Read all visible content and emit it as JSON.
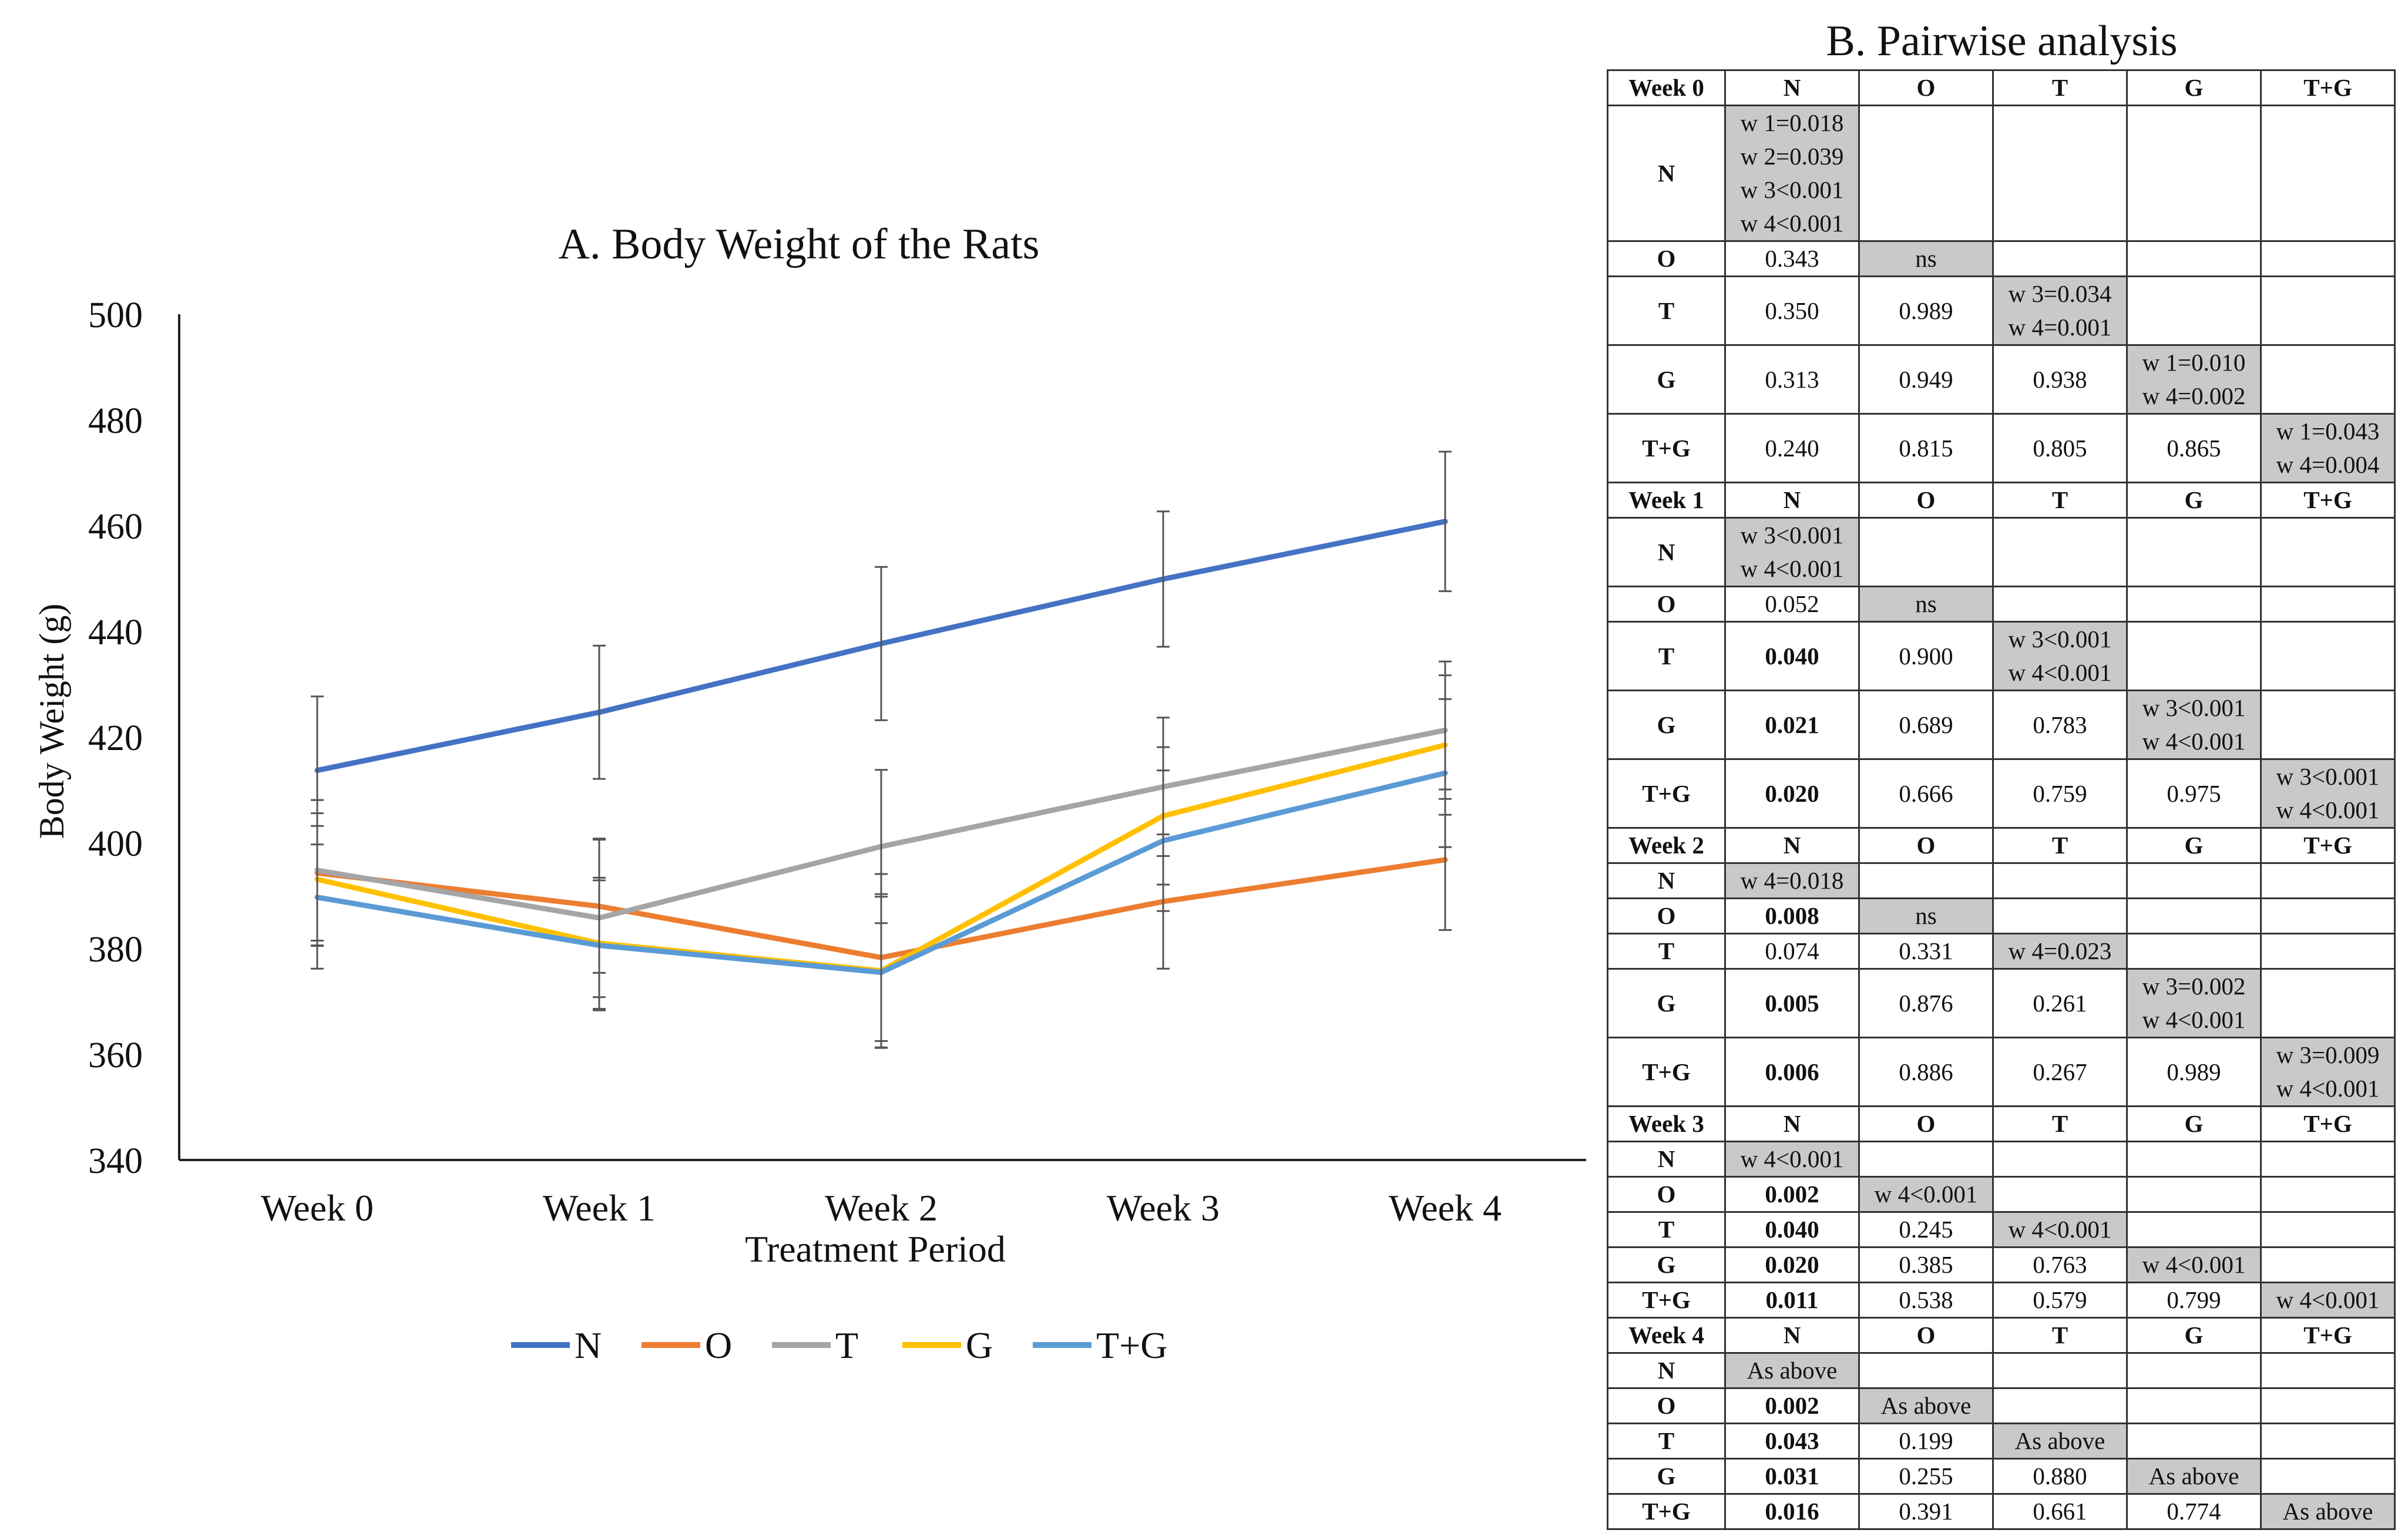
{
  "chart_data": {
    "type": "line",
    "title": "A. Body Weight of the Rats",
    "xlabel": "Treatment Period",
    "ylabel": "Body Weight (g)",
    "categories": [
      "Week 0",
      "Week 1",
      "Week 2",
      "Week 3",
      "Week 4"
    ],
    "ylim": [
      340,
      500
    ],
    "yticks": [
      340,
      360,
      380,
      400,
      420,
      440,
      460,
      480,
      500
    ],
    "grid": false,
    "legend_position": "bottom",
    "series": [
      {
        "name": "N",
        "color": "#4472c4",
        "values": [
          413.7,
          424.7,
          437.7,
          449.9,
          460.8
        ],
        "error": [
          14,
          12.6,
          14.5,
          12.8,
          13.2
        ]
      },
      {
        "name": "O",
        "color": "#ed7d31",
        "values": [
          394.3,
          388.0,
          378.3,
          388.9,
          396.8
        ],
        "error": [
          13.8,
          12.6,
          15.8,
          12.7,
          13.3
        ]
      },
      {
        "name": "T",
        "color": "#a5a5a5",
        "values": [
          394.8,
          385.8,
          399.3,
          410.6,
          421.3
        ],
        "error": [
          13.3,
          15.0,
          14.5,
          13.1,
          13.0
        ]
      },
      {
        "name": "G",
        "color": "#ffc000",
        "values": [
          393.1,
          381.0,
          375.8,
          405.1,
          418.5
        ],
        "error": [
          12.5,
          12.4,
          14.5,
          13.0,
          13.2
        ]
      },
      {
        "name": "T+G",
        "color": "#5b9bd5",
        "values": [
          389.7,
          380.6,
          375.5,
          400.4,
          413.2
        ],
        "error": [
          13.5,
          12.3,
          14.3,
          13.3,
          14.0
        ]
      }
    ]
  },
  "pairwise": {
    "title": "B. Pairwise analysis",
    "columns": [
      "N",
      "O",
      "T",
      "G",
      "T+G"
    ],
    "weeks": [
      {
        "label": "Week 0",
        "rows": [
          {
            "label": "N",
            "cells": [
              [
                "w 1=0.018",
                "w 2=0.039",
                "w 3<0.001",
                "w 4<0.001"
              ],
              [],
              [],
              [],
              []
            ]
          },
          {
            "label": "O",
            "cells": [
              [
                "0.343"
              ],
              [
                "ns"
              ],
              [],
              [],
              []
            ]
          },
          {
            "label": "T",
            "cells": [
              [
                "0.350"
              ],
              [
                "0.989"
              ],
              [
                "w 3=0.034",
                "w 4=0.001"
              ],
              [],
              []
            ]
          },
          {
            "label": "G",
            "cells": [
              [
                "0.313"
              ],
              [
                "0.949"
              ],
              [
                "0.938"
              ],
              [
                "w 1=0.010",
                "w 4=0.002"
              ],
              []
            ]
          },
          {
            "label": "T+G",
            "cells": [
              [
                "0.240"
              ],
              [
                "0.815"
              ],
              [
                "0.805"
              ],
              [
                "0.865"
              ],
              [
                "w 1=0.043",
                "w 4=0.004"
              ]
            ]
          }
        ]
      },
      {
        "label": "Week 1",
        "rows": [
          {
            "label": "N",
            "cells": [
              [
                "w 3<0.001",
                "w 4<0.001"
              ],
              [],
              [],
              [],
              []
            ]
          },
          {
            "label": "O",
            "cells": [
              [
                "0.052"
              ],
              [
                "ns"
              ],
              [],
              [],
              []
            ]
          },
          {
            "label": "T",
            "cells": [
              [
                "0.040"
              ],
              [
                "0.900"
              ],
              [
                "w 3<0.001",
                "w 4<0.001"
              ],
              [],
              []
            ],
            "bold": [
              0
            ]
          },
          {
            "label": "G",
            "cells": [
              [
                "0.021"
              ],
              [
                "0.689"
              ],
              [
                "0.783"
              ],
              [
                "w 3<0.001",
                "w 4<0.001"
              ],
              []
            ],
            "bold": [
              0
            ]
          },
          {
            "label": "T+G",
            "cells": [
              [
                "0.020"
              ],
              [
                "0.666"
              ],
              [
                "0.759"
              ],
              [
                "0.975"
              ],
              [
                "w 3<0.001",
                "w 4<0.001"
              ]
            ],
            "bold": [
              0
            ]
          }
        ]
      },
      {
        "label": "Week 2",
        "rows": [
          {
            "label": "N",
            "cells": [
              [
                "w 4=0.018"
              ],
              [],
              [],
              [],
              []
            ]
          },
          {
            "label": "O",
            "cells": [
              [
                "0.008"
              ],
              [
                "ns"
              ],
              [],
              [],
              []
            ],
            "bold": [
              0
            ]
          },
          {
            "label": "T",
            "cells": [
              [
                "0.074"
              ],
              [
                "0.331"
              ],
              [
                "w 4=0.023"
              ],
              [],
              []
            ]
          },
          {
            "label": "G",
            "cells": [
              [
                "0.005"
              ],
              [
                "0.876"
              ],
              [
                "0.261"
              ],
              [
                "w 3=0.002",
                "w 4<0.001"
              ],
              []
            ],
            "bold": [
              0
            ]
          },
          {
            "label": "T+G",
            "cells": [
              [
                "0.006"
              ],
              [
                "0.886"
              ],
              [
                "0.267"
              ],
              [
                "0.989"
              ],
              [
                "w 3=0.009",
                "w 4<0.001"
              ]
            ],
            "bold": [
              0
            ]
          }
        ]
      },
      {
        "label": "Week 3",
        "rows": [
          {
            "label": "N",
            "cells": [
              [
                "w 4<0.001"
              ],
              [],
              [],
              [],
              []
            ]
          },
          {
            "label": "O",
            "cells": [
              [
                "0.002"
              ],
              [
                "w 4<0.001"
              ],
              [],
              [],
              []
            ],
            "bold": [
              0
            ]
          },
          {
            "label": "T",
            "cells": [
              [
                "0.040"
              ],
              [
                "0.245"
              ],
              [
                "w 4<0.001"
              ],
              [],
              []
            ],
            "bold": [
              0
            ]
          },
          {
            "label": "G",
            "cells": [
              [
                "0.020"
              ],
              [
                "0.385"
              ],
              [
                "0.763"
              ],
              [
                "w 4<0.001"
              ],
              []
            ],
            "bold": [
              0
            ]
          },
          {
            "label": "T+G",
            "cells": [
              [
                "0.011"
              ],
              [
                "0.538"
              ],
              [
                "0.579"
              ],
              [
                "0.799"
              ],
              [
                "w 4<0.001"
              ]
            ],
            "bold": [
              0
            ]
          }
        ]
      },
      {
        "label": "Week 4",
        "rows": [
          {
            "label": "N",
            "cells": [
              [
                "As above"
              ],
              [],
              [],
              [],
              []
            ]
          },
          {
            "label": "O",
            "cells": [
              [
                "0.002"
              ],
              [
                "As above"
              ],
              [],
              [],
              []
            ],
            "bold": [
              0
            ]
          },
          {
            "label": "T",
            "cells": [
              [
                "0.043"
              ],
              [
                "0.199"
              ],
              [
                "As above"
              ],
              [],
              []
            ],
            "bold": [
              0
            ]
          },
          {
            "label": "G",
            "cells": [
              [
                "0.031"
              ],
              [
                "0.255"
              ],
              [
                "0.880"
              ],
              [
                "As above"
              ],
              []
            ],
            "bold": [
              0
            ]
          },
          {
            "label": "T+G",
            "cells": [
              [
                "0.016"
              ],
              [
                "0.391"
              ],
              [
                "0.661"
              ],
              [
                "0.774"
              ],
              [
                "As above"
              ]
            ],
            "bold": [
              0
            ]
          }
        ]
      }
    ]
  }
}
